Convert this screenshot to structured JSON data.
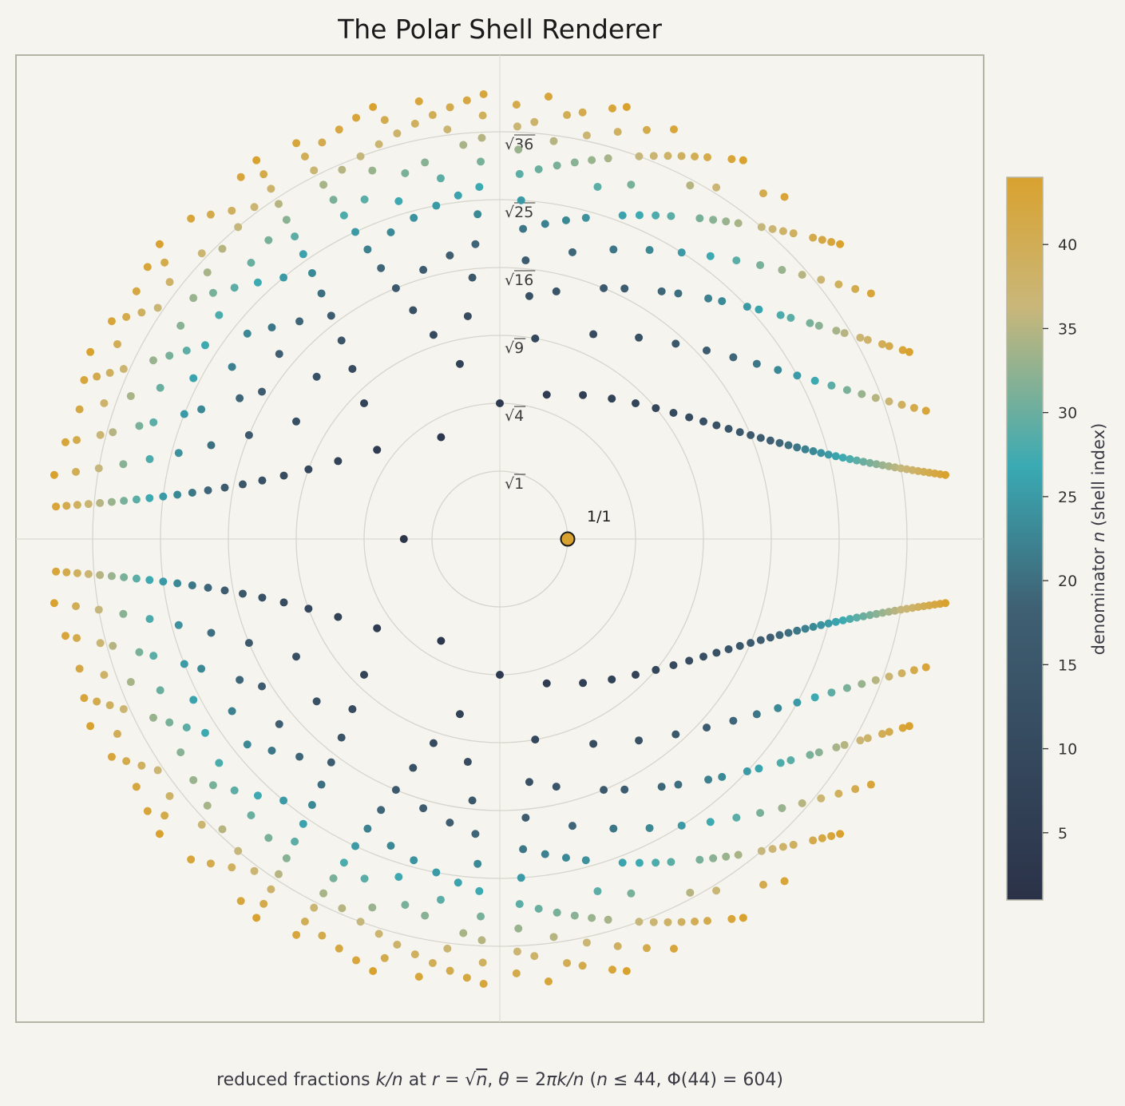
{
  "chart_data": {
    "type": "scatter",
    "title": "The Polar Shell Renderer",
    "caption_parts": [
      "reduced fractions ",
      "k/n",
      " at ",
      "r",
      " = ",
      "√",
      "n",
      ", ",
      "θ",
      " = 2",
      "πk/n",
      "  (",
      "n",
      " ≤ 44, Φ(44) = 604)"
    ],
    "n_max": 44,
    "count_label": "Φ(44) = 604",
    "ring_labels": [
      {
        "n": 1,
        "text": "√1"
      },
      {
        "n": 4,
        "text": "√4"
      },
      {
        "n": 9,
        "text": "√9"
      },
      {
        "n": 16,
        "text": "√16"
      },
      {
        "n": 25,
        "text": "√25"
      },
      {
        "n": 36,
        "text": "√36"
      }
    ],
    "highlight": {
      "k": 1,
      "n": 1,
      "label": "1/1",
      "color": "#d9a22f"
    },
    "colorbar": {
      "label_prefix": "denominator ",
      "label_var": "n",
      "label_suffix": " (shell index)",
      "ticks": [
        5,
        10,
        15,
        20,
        25,
        30,
        35,
        40
      ],
      "range": [
        1,
        44
      ],
      "colors": [
        "#2b3248",
        "#3f5f72",
        "#3aaab3",
        "#c9b77a",
        "#d9a22f"
      ]
    },
    "grid": true,
    "legend": "none"
  }
}
